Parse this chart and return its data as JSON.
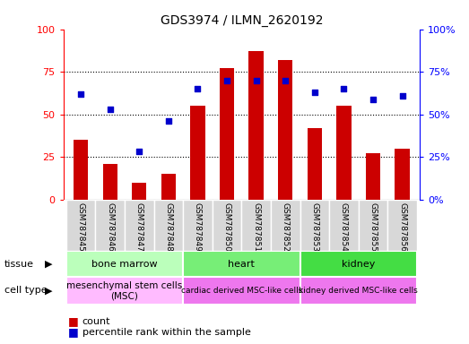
{
  "title": "GDS3974 / ILMN_2620192",
  "samples": [
    "GSM787845",
    "GSM787846",
    "GSM787847",
    "GSM787848",
    "GSM787849",
    "GSM787850",
    "GSM787851",
    "GSM787852",
    "GSM787853",
    "GSM787854",
    "GSM787855",
    "GSM787856"
  ],
  "counts": [
    35,
    21,
    10,
    15,
    55,
    77,
    87,
    82,
    42,
    55,
    27,
    30
  ],
  "percentiles": [
    62,
    53,
    28,
    46,
    65,
    70,
    70,
    70,
    63,
    65,
    59,
    61
  ],
  "ylim": [
    0,
    100
  ],
  "bar_color": "#cc0000",
  "dot_color": "#0000cc",
  "tick_vals": [
    0,
    25,
    50,
    75,
    100
  ],
  "tissue_labels": [
    "bone marrow",
    "heart",
    "kidney"
  ],
  "tissue_starts": [
    0,
    4,
    8
  ],
  "tissue_ends": [
    4,
    8,
    12
  ],
  "tissue_colors": [
    "#aaffaa",
    "#66ee66",
    "#44dd44"
  ],
  "celltype_labels": [
    "mesenchymal stem cells\n(MSC)",
    "cardiac derived MSC-like cells",
    "kidney derived MSC-like cells"
  ],
  "celltype_starts": [
    0,
    4,
    8
  ],
  "celltype_ends": [
    4,
    8,
    12
  ],
  "celltype_colors": [
    "#ffaaff",
    "#ee88ee",
    "#ee88ee"
  ],
  "celltype_fontsizes": [
    7.5,
    6.5,
    6.5
  ],
  "bar_width": 0.5,
  "background_white": "#ffffff",
  "sample_box_color": "#d8d8d8",
  "grid_color": "#000000"
}
